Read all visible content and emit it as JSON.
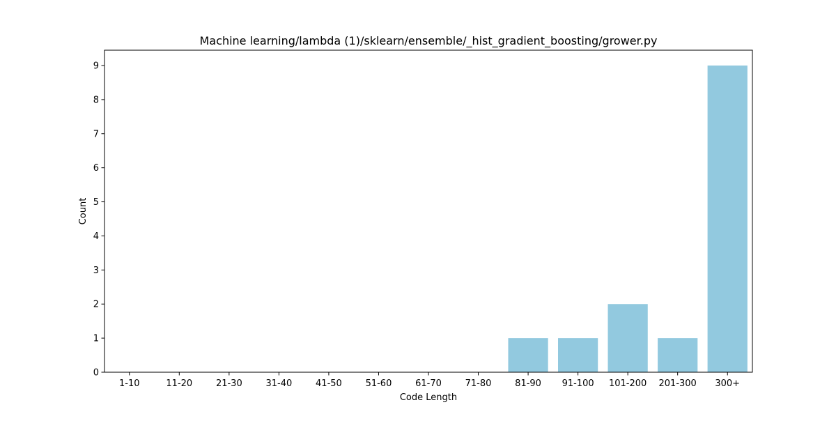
{
  "chart_data": {
    "type": "bar",
    "title": "Machine learning/lambda (1)/sklearn/ensemble/_hist_gradient_boosting/grower.py",
    "xlabel": "Code Length",
    "ylabel": "Count",
    "categories": [
      "1-10",
      "11-20",
      "21-30",
      "31-40",
      "41-50",
      "51-60",
      "61-70",
      "71-80",
      "81-90",
      "91-100",
      "101-200",
      "201-300",
      "300+"
    ],
    "values": [
      0,
      0,
      0,
      0,
      0,
      0,
      0,
      0,
      1,
      1,
      2,
      1,
      9
    ],
    "ylim": [
      0,
      9.45
    ],
    "yticks": [
      0,
      1,
      2,
      3,
      4,
      5,
      6,
      7,
      8,
      9
    ],
    "bar_color": "#92c9df",
    "grid": false,
    "legend": "none"
  }
}
